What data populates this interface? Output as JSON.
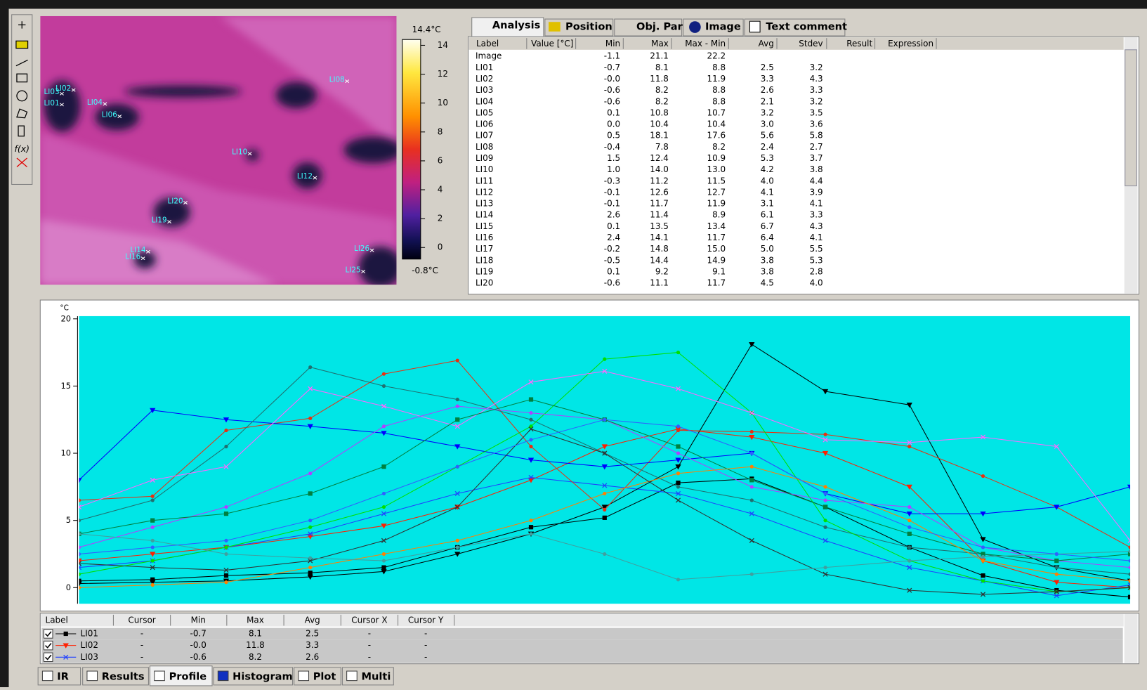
{
  "toolbar": {
    "function_button": "f(x)"
  },
  "thermal_image": {
    "colorbar": {
      "max_label": "14.4°C",
      "min_label": "-0.8°C",
      "range": [
        -0.8,
        14.4
      ],
      "ticks": [
        0,
        2,
        4,
        6,
        8,
        10,
        12,
        14
      ]
    },
    "spot_labels": [
      "LI01",
      "LI02",
      "LI03",
      "LI04",
      "LI06",
      "LI08",
      "LI10",
      "LI12",
      "LI20",
      "LI19",
      "LI14",
      "LI16",
      "LI26",
      "LI25"
    ]
  },
  "top_tabs": [
    "Analysis",
    "Position",
    "Obj. Par",
    "Image",
    "Text comment"
  ],
  "analysis": {
    "columns": {
      "label": "Label",
      "value": "Value [°C]",
      "min": "Min",
      "max": "Max",
      "max_min": "Max - Min",
      "avg": "Avg",
      "stdev": "Stdev",
      "result": "Result",
      "expression": "Expression"
    },
    "rows": [
      {
        "label": "Image",
        "min": "-1.1",
        "max": "21.1",
        "max_min": "22.2"
      },
      {
        "label": "LI01",
        "min": "-0.7",
        "max": "8.1",
        "max_min": "8.8",
        "avg": "2.5",
        "stdev": "3.2"
      },
      {
        "label": "LI02",
        "min": "-0.0",
        "max": "11.8",
        "max_min": "11.9",
        "avg": "3.3",
        "stdev": "4.3"
      },
      {
        "label": "LI03",
        "min": "-0.6",
        "max": "8.2",
        "max_min": "8.8",
        "avg": "2.6",
        "stdev": "3.3"
      },
      {
        "label": "LI04",
        "min": "-0.6",
        "max": "8.2",
        "max_min": "8.8",
        "avg": "2.1",
        "stdev": "3.2"
      },
      {
        "label": "LI05",
        "min": "0.1",
        "max": "10.8",
        "max_min": "10.7",
        "avg": "3.2",
        "stdev": "3.5"
      },
      {
        "label": "LI06",
        "min": "0.0",
        "max": "10.4",
        "max_min": "10.4",
        "avg": "3.0",
        "stdev": "3.6"
      },
      {
        "label": "LI07",
        "min": "0.5",
        "max": "18.1",
        "max_min": "17.6",
        "avg": "5.6",
        "stdev": "5.8"
      },
      {
        "label": "LI08",
        "min": "-0.4",
        "max": "7.8",
        "max_min": "8.2",
        "avg": "2.4",
        "stdev": "2.7"
      },
      {
        "label": "LI09",
        "min": "1.5",
        "max": "12.4",
        "max_min": "10.9",
        "avg": "5.3",
        "stdev": "3.7"
      },
      {
        "label": "LI10",
        "min": "1.0",
        "max": "14.0",
        "max_min": "13.0",
        "avg": "4.2",
        "stdev": "3.8"
      },
      {
        "label": "LI11",
        "min": "-0.3",
        "max": "11.2",
        "max_min": "11.5",
        "avg": "4.0",
        "stdev": "4.4"
      },
      {
        "label": "LI12",
        "min": "-0.1",
        "max": "12.6",
        "max_min": "12.7",
        "avg": "4.1",
        "stdev": "3.9"
      },
      {
        "label": "LI13",
        "min": "-0.1",
        "max": "11.7",
        "max_min": "11.9",
        "avg": "3.1",
        "stdev": "4.1"
      },
      {
        "label": "LI14",
        "min": "2.6",
        "max": "11.4",
        "max_min": "8.9",
        "avg": "6.1",
        "stdev": "3.3"
      },
      {
        "label": "LI15",
        "min": "0.1",
        "max": "13.5",
        "max_min": "13.4",
        "avg": "6.7",
        "stdev": "4.3"
      },
      {
        "label": "LI16",
        "min": "2.4",
        "max": "14.1",
        "max_min": "11.7",
        "avg": "6.4",
        "stdev": "4.1"
      },
      {
        "label": "LI17",
        "min": "-0.2",
        "max": "14.8",
        "max_min": "15.0",
        "avg": "5.0",
        "stdev": "5.5"
      },
      {
        "label": "LI18",
        "min": "-0.5",
        "max": "14.4",
        "max_min": "14.9",
        "avg": "3.8",
        "stdev": "5.3"
      },
      {
        "label": "LI19",
        "min": "0.1",
        "max": "9.2",
        "max_min": "9.1",
        "avg": "3.8",
        "stdev": "2.8"
      },
      {
        "label": "LI20",
        "min": "-0.6",
        "max": "11.1",
        "max_min": "11.7",
        "avg": "4.5",
        "stdev": "4.0"
      }
    ]
  },
  "chart_data": {
    "type": "line",
    "y_label": "°C",
    "ylim": [
      -1.2,
      20.2
    ],
    "yticks": [
      0,
      5,
      10,
      15,
      20
    ],
    "xlim": [
      0,
      100
    ],
    "grid": false,
    "background": "#00e6e6",
    "x": [
      0,
      7,
      14,
      22,
      29,
      36,
      43,
      50,
      57,
      64,
      71,
      79,
      86,
      93,
      100
    ],
    "series": [
      {
        "name": "LI01",
        "color": "#000000",
        "marker": "square",
        "values": [
          0.5,
          0.6,
          0.9,
          1.1,
          1.5,
          3.0,
          4.5,
          5.2,
          7.8,
          8.1,
          6.0,
          3.0,
          0.9,
          -0.2,
          -0.7
        ]
      },
      {
        "name": "LI02",
        "color": "#ff2000",
        "marker": "triangle-down",
        "values": [
          2.0,
          2.5,
          3.0,
          3.8,
          4.6,
          6.0,
          8.0,
          10.5,
          11.8,
          11.2,
          10.0,
          7.5,
          2.0,
          0.4,
          -0.0
        ]
      },
      {
        "name": "LI03",
        "color": "#2040ff",
        "marker": "x",
        "values": [
          1.5,
          2.0,
          3.0,
          4.0,
          5.5,
          7.0,
          8.2,
          7.6,
          7.0,
          5.5,
          3.5,
          1.5,
          0.5,
          -0.6,
          0.2
        ]
      },
      {
        "color": "#000000",
        "marker": "triangle-down",
        "values": [
          0.3,
          0.4,
          0.5,
          0.8,
          1.2,
          2.5,
          4.0,
          6.0,
          9.0,
          18.1,
          14.6,
          13.6,
          3.6,
          1.5,
          0.5
        ]
      },
      {
        "color": "#e83010",
        "marker": "circle",
        "values": [
          6.5,
          6.8,
          11.7,
          12.6,
          15.9,
          16.9,
          10.5,
          5.8,
          11.7,
          11.6,
          11.4,
          10.5,
          8.3,
          6.0,
          3.0
        ]
      },
      {
        "color": "#0000ff",
        "marker": "triangle-down",
        "values": [
          8.0,
          13.2,
          12.5,
          12.0,
          11.5,
          10.5,
          9.5,
          9.0,
          9.5,
          10.0,
          7.0,
          5.5,
          5.5,
          6.0,
          7.5
        ]
      },
      {
        "color": "#207070",
        "marker": "circle",
        "values": [
          5.0,
          6.5,
          10.5,
          16.4,
          15.0,
          14.0,
          12.5,
          10.0,
          7.5,
          6.5,
          4.5,
          3.0,
          2.5,
          1.5,
          1.0
        ]
      },
      {
        "color": "#00e000",
        "marker": "circle",
        "values": [
          1.0,
          2.0,
          3.0,
          4.5,
          6.0,
          9.0,
          12.0,
          17.0,
          17.5,
          13.0,
          5.0,
          2.0,
          0.5,
          -0.3,
          0.0
        ]
      },
      {
        "color": "#ff66ff",
        "marker": "x",
        "values": [
          6.0,
          8.0,
          9.0,
          14.8,
          13.5,
          12.0,
          15.3,
          16.1,
          14.8,
          13.0,
          11.0,
          10.8,
          11.2,
          10.5,
          3.5
        ]
      },
      {
        "color": "#b040ff",
        "marker": "circle",
        "values": [
          3.0,
          4.5,
          6.0,
          8.5,
          12.0,
          13.5,
          13.0,
          12.5,
          10.0,
          7.5,
          6.5,
          6.0,
          3.0,
          2.0,
          1.5
        ]
      },
      {
        "color": "#008040",
        "marker": "square",
        "values": [
          4.0,
          5.0,
          5.5,
          7.0,
          9.0,
          12.5,
          14.0,
          12.5,
          10.5,
          8.0,
          6.0,
          4.0,
          2.5,
          2.0,
          2.5
        ]
      },
      {
        "color": "#ff8000",
        "marker": "circle",
        "values": [
          0.0,
          0.2,
          0.4,
          1.5,
          2.5,
          3.5,
          5.0,
          7.0,
          8.5,
          9.0,
          7.5,
          5.0,
          2.0,
          1.0,
          0.5
        ]
      },
      {
        "color": "#303030",
        "marker": "x",
        "values": [
          1.8,
          1.5,
          1.3,
          2.0,
          3.5,
          6.0,
          11.8,
          10.0,
          6.5,
          3.5,
          1.0,
          -0.2,
          -0.5,
          -0.3,
          0.0
        ]
      },
      {
        "color": "#40a0a0",
        "marker": "circle",
        "values": [
          4.0,
          3.5,
          2.5,
          2.2,
          2.0,
          3.0,
          4.0,
          2.5,
          0.6,
          1.0,
          1.5,
          2.0,
          2.3,
          2.5,
          2.7
        ]
      },
      {
        "color": "#3060ff",
        "marker": "circle",
        "values": [
          2.5,
          3.0,
          3.5,
          5.0,
          7.0,
          9.0,
          11.0,
          12.5,
          12.0,
          10.0,
          7.0,
          4.5,
          3.0,
          2.5,
          2.0
        ]
      }
    ]
  },
  "profile_table": {
    "columns": {
      "label": "Label",
      "cursor": "Cursor",
      "min": "Min",
      "max": "Max",
      "avg": "Avg",
      "cursor_x": "Cursor X",
      "cursor_y": "Cursor Y"
    },
    "rows": [
      {
        "cursor": "-",
        "min": "-0.7",
        "max": "8.1",
        "avg": "2.5",
        "cursor_x": "-",
        "cursor_y": "-"
      },
      {
        "cursor": "-",
        "min": "-0.0",
        "max": "11.8",
        "avg": "3.3",
        "cursor_x": "-",
        "cursor_y": "-"
      },
      {
        "cursor": "-",
        "min": "-0.6",
        "max": "8.2",
        "avg": "2.6",
        "cursor_x": "-",
        "cursor_y": "-"
      }
    ]
  },
  "bottom_tabs": [
    "IR",
    "Results",
    "Profile",
    "Histogram",
    "Plot",
    "Multi"
  ]
}
